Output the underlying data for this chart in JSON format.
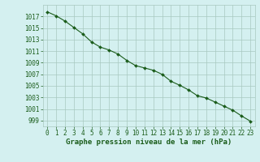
{
  "x": [
    0,
    1,
    2,
    3,
    4,
    5,
    6,
    7,
    8,
    9,
    10,
    11,
    12,
    13,
    14,
    15,
    16,
    17,
    18,
    19,
    20,
    21,
    22,
    23
  ],
  "y": [
    1017.8,
    1017.1,
    1016.2,
    1015.1,
    1014.0,
    1012.6,
    1011.7,
    1011.2,
    1010.5,
    1009.4,
    1008.5,
    1008.1,
    1007.7,
    1007.0,
    1005.8,
    1005.1,
    1004.3,
    1003.3,
    1002.9,
    1002.2,
    1001.5,
    1000.8,
    999.8,
    998.9
  ],
  "line_color": "#1a5c1a",
  "marker": "D",
  "marker_size": 2.0,
  "marker_color": "#1a5c1a",
  "bg_color": "#d4f0f0",
  "grid_color": "#a8c8c0",
  "xlabel": "Graphe pression niveau de la mer (hPa)",
  "xlabel_fontsize": 6.5,
  "xlabel_color": "#1a5c1a",
  "tick_label_color": "#1a5c1a",
  "tick_fontsize": 5.5,
  "ymin": 998,
  "ymax": 1019,
  "xmin": -0.5,
  "xmax": 23.5,
  "linewidth": 0.8
}
